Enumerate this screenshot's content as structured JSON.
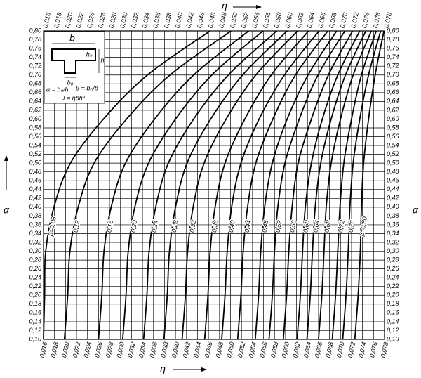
{
  "chart_data": {
    "type": "line",
    "xlabel": "η",
    "ylabel": "α",
    "xlim": [
      0.016,
      0.078
    ],
    "ylim": [
      0.1,
      0.8
    ],
    "grid": true,
    "xticks": [
      {
        "value": 0.016,
        "label": "0,016"
      },
      {
        "value": 0.018,
        "label": "0,018"
      },
      {
        "value": 0.02,
        "label": "0,020"
      },
      {
        "value": 0.022,
        "label": "0,022"
      },
      {
        "value": 0.024,
        "label": "0,024"
      },
      {
        "value": 0.026,
        "label": "0,026"
      },
      {
        "value": 0.028,
        "label": "0,028"
      },
      {
        "value": 0.03,
        "label": "0,030"
      },
      {
        "value": 0.032,
        "label": "0,032"
      },
      {
        "value": 0.034,
        "label": "0,034"
      },
      {
        "value": 0.036,
        "label": "0,036"
      },
      {
        "value": 0.038,
        "label": "0,038"
      },
      {
        "value": 0.04,
        "label": "0,040"
      },
      {
        "value": 0.042,
        "label": "0,042"
      },
      {
        "value": 0.044,
        "label": "0,044"
      },
      {
        "value": 0.046,
        "label": "0,046"
      },
      {
        "value": 0.048,
        "label": "0,048"
      },
      {
        "value": 0.05,
        "label": "0,050"
      },
      {
        "value": 0.052,
        "label": "0,052"
      },
      {
        "value": 0.054,
        "label": "0,054"
      },
      {
        "value": 0.056,
        "label": "0,056"
      },
      {
        "value": 0.058,
        "label": "0,058"
      },
      {
        "value": 0.06,
        "label": "0,060"
      },
      {
        "value": 0.062,
        "label": "0,062"
      },
      {
        "value": 0.064,
        "label": "0,064"
      },
      {
        "value": 0.066,
        "label": "0,066"
      },
      {
        "value": 0.068,
        "label": "0,068"
      },
      {
        "value": 0.07,
        "label": "0,070"
      },
      {
        "value": 0.072,
        "label": "0,072"
      },
      {
        "value": 0.074,
        "label": "0,074"
      },
      {
        "value": 0.076,
        "label": "0,076"
      },
      {
        "value": 0.078,
        "label": "0,078"
      }
    ],
    "yticks": [
      {
        "value": 0.1,
        "label": "0,10"
      },
      {
        "value": 0.12,
        "label": "0,12"
      },
      {
        "value": 0.14,
        "label": "0,14"
      },
      {
        "value": 0.16,
        "label": "0,16"
      },
      {
        "value": 0.18,
        "label": "0,18"
      },
      {
        "value": 0.2,
        "label": "0,20"
      },
      {
        "value": 0.22,
        "label": "0,22"
      },
      {
        "value": 0.24,
        "label": "0,24"
      },
      {
        "value": 0.26,
        "label": "0,26"
      },
      {
        "value": 0.28,
        "label": "0,28"
      },
      {
        "value": 0.3,
        "label": "0,30"
      },
      {
        "value": 0.32,
        "label": "0,32"
      },
      {
        "value": 0.34,
        "label": "0,34"
      },
      {
        "value": 0.36,
        "label": "0,36"
      },
      {
        "value": 0.38,
        "label": "0,38"
      },
      {
        "value": 0.4,
        "label": "0,40"
      },
      {
        "value": 0.42,
        "label": "0,42"
      },
      {
        "value": 0.44,
        "label": "0,44"
      },
      {
        "value": 0.46,
        "label": "0,46"
      },
      {
        "value": 0.48,
        "label": "0,48"
      },
      {
        "value": 0.5,
        "label": "0,50"
      },
      {
        "value": 0.52,
        "label": "0,52"
      },
      {
        "value": 0.54,
        "label": "0,54"
      },
      {
        "value": 0.56,
        "label": "0,56"
      },
      {
        "value": 0.58,
        "label": "0,58"
      },
      {
        "value": 0.6,
        "label": "0,60"
      },
      {
        "value": 0.62,
        "label": "0,62"
      },
      {
        "value": 0.64,
        "label": "0,64"
      },
      {
        "value": 0.66,
        "label": "0,66"
      },
      {
        "value": 0.68,
        "label": "0,68"
      },
      {
        "value": 0.7,
        "label": "0,70"
      },
      {
        "value": 0.72,
        "label": "0,72"
      },
      {
        "value": 0.74,
        "label": "0,74"
      },
      {
        "value": 0.76,
        "label": "0,76"
      },
      {
        "value": 0.78,
        "label": "0,78"
      },
      {
        "value": 0.8,
        "label": "0,80"
      }
    ],
    "series": [
      {
        "name": "β=0,08",
        "color": "#000",
        "x": [
          0.016,
          0.0162,
          0.0164,
          0.0179,
          0.0209,
          0.0269,
          0.0349,
          0.0463
        ],
        "values": [
          0.1,
          0.2,
          0.3,
          0.4,
          0.5,
          0.6,
          0.7,
          0.8
        ]
      },
      {
        "name": "0,12",
        "color": "#000",
        "x": [
          0.0198,
          0.0204,
          0.0208,
          0.0223,
          0.0252,
          0.0311,
          0.039,
          0.0501
        ],
        "values": [
          0.1,
          0.2,
          0.3,
          0.4,
          0.5,
          0.6,
          0.7,
          0.8
        ]
      },
      {
        "name": "0,16",
        "color": "#000",
        "x": [
          0.026,
          0.0266,
          0.027,
          0.0283,
          0.0309,
          0.0362,
          0.0433,
          0.0533
        ],
        "values": [
          0.1,
          0.2,
          0.3,
          0.4,
          0.5,
          0.6,
          0.7,
          0.8
        ]
      },
      {
        "name": "0,20",
        "color": "#000",
        "x": [
          0.0304,
          0.031,
          0.0314,
          0.0326,
          0.0351,
          0.04,
          0.0466,
          0.0559
        ],
        "values": [
          0.1,
          0.2,
          0.3,
          0.4,
          0.5,
          0.6,
          0.7,
          0.8
        ]
      },
      {
        "name": "0,24",
        "color": "#000",
        "x": [
          0.0342,
          0.0348,
          0.0352,
          0.0364,
          0.0387,
          0.0433,
          0.0496,
          0.0584
        ],
        "values": [
          0.1,
          0.2,
          0.3,
          0.4,
          0.5,
          0.6,
          0.7,
          0.8
        ]
      },
      {
        "name": "0,28",
        "color": "#000",
        "x": [
          0.0379,
          0.0385,
          0.0389,
          0.04,
          0.0421,
          0.0464,
          0.0522,
          0.0603
        ],
        "values": [
          0.1,
          0.2,
          0.3,
          0.4,
          0.5,
          0.6,
          0.7,
          0.8
        ]
      },
      {
        "name": "0,32",
        "color": "#000",
        "x": [
          0.0412,
          0.0418,
          0.0422,
          0.0432,
          0.0452,
          0.0492,
          0.0546,
          0.0622
        ],
        "values": [
          0.1,
          0.2,
          0.3,
          0.4,
          0.5,
          0.6,
          0.7,
          0.8
        ]
      },
      {
        "name": "0,36",
        "color": "#000",
        "x": [
          0.0453,
          0.0459,
          0.0463,
          0.0472,
          0.049,
          0.0526,
          0.0574,
          0.0642
        ],
        "values": [
          0.1,
          0.2,
          0.3,
          0.4,
          0.5,
          0.6,
          0.7,
          0.8
        ]
      },
      {
        "name": "0,40",
        "color": "#000",
        "x": [
          0.0484,
          0.049,
          0.0494,
          0.0502,
          0.0519,
          0.0552,
          0.0598,
          0.0661
        ],
        "values": [
          0.1,
          0.2,
          0.3,
          0.4,
          0.5,
          0.6,
          0.7,
          0.8
        ]
      },
      {
        "name": "0,44",
        "color": "#000",
        "x": [
          0.0513,
          0.0519,
          0.0523,
          0.0531,
          0.0546,
          0.0577,
          0.0618,
          0.0677
        ],
        "values": [
          0.1,
          0.2,
          0.3,
          0.4,
          0.5,
          0.6,
          0.7,
          0.8
        ]
      },
      {
        "name": "0,48",
        "color": "#000",
        "x": [
          0.0545,
          0.0551,
          0.0555,
          0.0562,
          0.0576,
          0.0603,
          0.0641,
          0.0693
        ],
        "values": [
          0.1,
          0.2,
          0.3,
          0.4,
          0.5,
          0.6,
          0.7,
          0.8
        ]
      },
      {
        "name": "0,52",
        "color": "#000",
        "x": [
          0.057,
          0.0576,
          0.058,
          0.0586,
          0.0599,
          0.0625,
          0.0659,
          0.0708
        ],
        "values": [
          0.1,
          0.2,
          0.3,
          0.4,
          0.5,
          0.6,
          0.7,
          0.8
        ]
      },
      {
        "name": "0,56",
        "color": "#000",
        "x": [
          0.0596,
          0.0602,
          0.0606,
          0.0612,
          0.0623,
          0.0647,
          0.0678,
          0.0722
        ],
        "values": [
          0.1,
          0.2,
          0.3,
          0.4,
          0.5,
          0.6,
          0.7,
          0.8
        ]
      },
      {
        "name": "0,60",
        "color": "#000",
        "x": [
          0.0621,
          0.0627,
          0.0631,
          0.0636,
          0.0647,
          0.0667,
          0.0695,
          0.0735
        ],
        "values": [
          0.1,
          0.2,
          0.3,
          0.4,
          0.5,
          0.6,
          0.7,
          0.8
        ]
      },
      {
        "name": "0,64",
        "color": "#000",
        "x": [
          0.0639,
          0.0645,
          0.0649,
          0.0654,
          0.0664,
          0.0683,
          0.0709,
          0.0746
        ],
        "values": [
          0.1,
          0.2,
          0.3,
          0.4,
          0.5,
          0.6,
          0.7,
          0.8
        ]
      },
      {
        "name": "0,68",
        "color": "#000",
        "x": [
          0.066,
          0.0666,
          0.067,
          0.0674,
          0.0683,
          0.07,
          0.0723,
          0.0756
        ],
        "values": [
          0.1,
          0.2,
          0.3,
          0.4,
          0.5,
          0.6,
          0.7,
          0.8
        ]
      },
      {
        "name": "0,72",
        "color": "#000",
        "x": [
          0.0685,
          0.0691,
          0.0695,
          0.0699,
          0.0706,
          0.072,
          0.0738,
          0.0765
        ],
        "values": [
          0.1,
          0.2,
          0.3,
          0.4,
          0.5,
          0.6,
          0.7,
          0.8
        ]
      },
      {
        "name": "0,76",
        "color": "#000",
        "x": [
          0.0704,
          0.071,
          0.0714,
          0.0717,
          0.0723,
          0.0735,
          0.0751,
          0.0773
        ],
        "values": [
          0.1,
          0.2,
          0.3,
          0.4,
          0.5,
          0.6,
          0.7,
          0.8
        ]
      },
      {
        "name": "β=0,80",
        "color": "#000",
        "x": [
          0.0726,
          0.0732,
          0.0736,
          0.0738,
          0.0742,
          0.0751,
          0.0763,
          0.0779
        ],
        "values": [
          0.1,
          0.2,
          0.3,
          0.4,
          0.5,
          0.6,
          0.7,
          0.8
        ]
      }
    ],
    "inset": {
      "b": "b",
      "hn": "hₙ",
      "h": "h",
      "b0": "b₀",
      "alpha": "α = hₙ/h",
      "beta": "β = b₀/b",
      "moment": "J = ηbh³"
    }
  }
}
